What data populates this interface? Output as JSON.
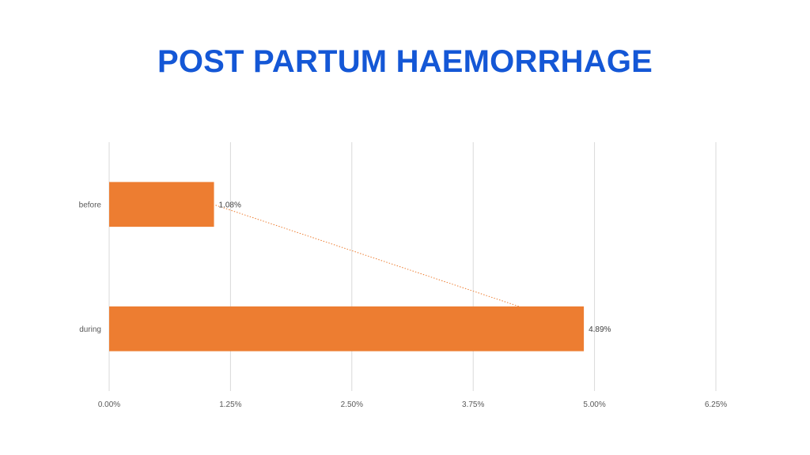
{
  "slide": {
    "title": "POST PARTUM HAEMORRHAGE"
  },
  "colors": {
    "title": "#1457d6",
    "bar": "#ed7d31",
    "trendline": "#ed7d31",
    "gridline": "#d9d9d9",
    "text": "#595959"
  },
  "chart_data": {
    "type": "bar",
    "orientation": "horizontal",
    "title": "",
    "xlabel": "",
    "ylabel": "",
    "categories": [
      "before",
      "during"
    ],
    "values": [
      1.08,
      4.89
    ],
    "data_labels": [
      "1.08%",
      "4.89%"
    ],
    "xlim": [
      0,
      6.25
    ],
    "x_ticks": [
      0,
      1.25,
      2.5,
      3.75,
      5.0,
      6.25
    ],
    "x_tick_labels": [
      "0.00%",
      "1.25%",
      "2.50%",
      "3.75%",
      "5.00%",
      "6.25%"
    ],
    "grid": true,
    "legend": "none",
    "trendline": "linear, dotted"
  }
}
